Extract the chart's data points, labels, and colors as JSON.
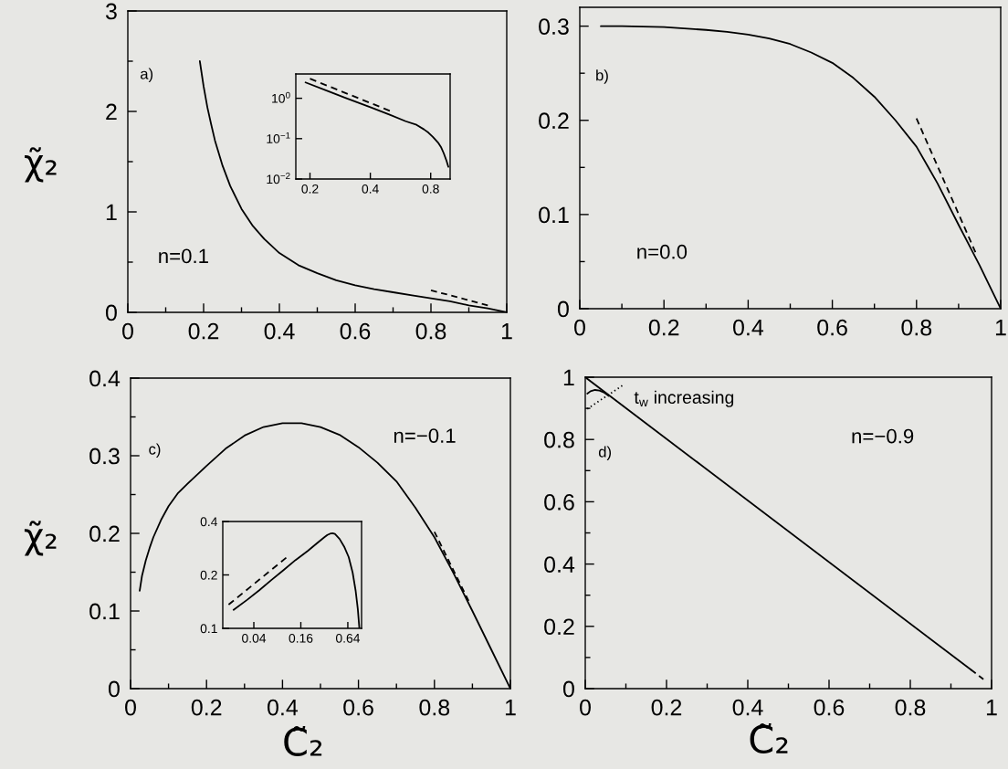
{
  "chart_data": [
    {
      "type": "line",
      "ylabel": "χ̃₂",
      "annotations": [
        "a)",
        "n=0.1"
      ],
      "series": [
        {
          "color": "#000000",
          "line_style": "solid",
          "x": [
            0.19,
            0.2,
            0.21,
            0.22,
            0.23,
            0.25,
            0.27,
            0.3,
            0.33,
            0.36,
            0.4,
            0.45,
            0.5,
            0.55,
            0.6,
            0.65,
            0.7,
            0.75,
            0.8,
            0.85,
            0.9,
            0.95,
            1.0
          ],
          "values": [
            2.5,
            2.25,
            2.04,
            1.87,
            1.71,
            1.46,
            1.26,
            1.03,
            0.86,
            0.73,
            0.59,
            0.47,
            0.39,
            0.32,
            0.27,
            0.23,
            0.2,
            0.17,
            0.14,
            0.11,
            0.07,
            0.04,
            0.0
          ]
        },
        {
          "color": "#000000",
          "line_style": "dashed",
          "x": [
            0.8,
            0.95
          ],
          "values": [
            0.22,
            0.07
          ]
        }
      ],
      "xlim": [
        0,
        1
      ],
      "ylim": [
        0,
        3
      ],
      "xticks": [
        0,
        {
          "value": 0.1,
          "label": null
        },
        0.2,
        {
          "value": 0.3,
          "label": null
        },
        0.4,
        {
          "value": 0.5,
          "label": null
        },
        0.6,
        {
          "value": 0.7,
          "label": null
        },
        0.8,
        {
          "value": 0.9,
          "label": null
        },
        1
      ],
      "yticks": [
        0,
        {
          "value": 0.5,
          "label": null
        },
        1,
        {
          "value": 1.5,
          "label": null
        },
        2,
        {
          "value": 2.5,
          "label": null
        },
        3
      ]
    },
    {
      "type": "line",
      "log": "xy",
      "series": [
        {
          "color": "#000000",
          "line_style": "solid",
          "x": [
            0.19,
            0.25,
            0.3,
            0.4,
            0.5,
            0.6,
            0.68,
            0.74,
            0.78,
            0.82,
            0.87,
            0.9,
            0.93,
            0.96,
            0.98
          ],
          "values": [
            2.47,
            1.46,
            1.03,
            0.6,
            0.39,
            0.27,
            0.22,
            0.17,
            0.14,
            0.11,
            0.08,
            0.062,
            0.043,
            0.028,
            0.02
          ]
        },
        {
          "color": "#000000",
          "line_style": "dashed",
          "x": [
            0.2,
            0.5
          ],
          "values": [
            3.05,
            0.49
          ]
        }
      ],
      "xlim": [
        0.17,
        1
      ],
      "ylim": [
        0.01,
        4
      ],
      "xticks": [
        0.2,
        0.4,
        0.8
      ],
      "yticks": [
        {
          "value": 1,
          "label": "10$^{0}$"
        },
        {
          "value": 0.1,
          "label": "10$^{−1}$"
        },
        {
          "value": 0.01,
          "label": "10$^{−2}$"
        }
      ]
    },
    {
      "type": "line",
      "annotations": [
        "b)",
        "n=0.0"
      ],
      "series": [
        {
          "color": "#000000",
          "line_style": "solid",
          "x": [
            0.05,
            0.1,
            0.2,
            0.3,
            0.35,
            0.4,
            0.45,
            0.5,
            0.55,
            0.6,
            0.65,
            0.7,
            0.75,
            0.8,
            0.85,
            0.9,
            0.95,
            1.0
          ],
          "values": [
            0.3,
            0.3,
            0.299,
            0.296,
            0.294,
            0.291,
            0.287,
            0.281,
            0.272,
            0.261,
            0.245,
            0.225,
            0.2,
            0.172,
            0.133,
            0.089,
            0.046,
            0.0
          ]
        },
        {
          "color": "#000000",
          "line_style": "dashed",
          "x": [
            0.8,
            0.94
          ],
          "values": [
            0.202,
            0.06
          ]
        }
      ],
      "xlim": [
        0,
        1
      ],
      "ylim": [
        0,
        0.32
      ],
      "xticks": [
        0,
        {
          "value": 0.1,
          "label": null
        },
        0.2,
        {
          "value": 0.3,
          "label": null
        },
        0.4,
        {
          "value": 0.5,
          "label": null
        },
        0.6,
        {
          "value": 0.7,
          "label": null
        },
        0.8,
        {
          "value": 0.9,
          "label": null
        },
        1
      ],
      "yticks": [
        0,
        {
          "value": 0.05,
          "label": null
        },
        0.1,
        {
          "value": 0.15,
          "label": null
        },
        0.2,
        {
          "value": 0.25,
          "label": null
        },
        0.3
      ]
    },
    {
      "type": "line",
      "ylabel": "χ̃₂",
      "xlabel": "C̃₂",
      "annotations": [
        "c)",
        "n=−0.1"
      ],
      "series": [
        {
          "color": "#000000",
          "line_style": "solid",
          "x": [
            0.024,
            0.03,
            0.04,
            0.05,
            0.06,
            0.08,
            0.1,
            0.125,
            0.15,
            0.2,
            0.25,
            0.3,
            0.35,
            0.4,
            0.45,
            0.5,
            0.55,
            0.6,
            0.65,
            0.7,
            0.75,
            0.8,
            0.85,
            0.9,
            0.95,
            1.0
          ],
          "values": [
            0.126,
            0.145,
            0.165,
            0.181,
            0.195,
            0.217,
            0.235,
            0.252,
            0.264,
            0.287,
            0.309,
            0.326,
            0.337,
            0.342,
            0.342,
            0.337,
            0.327,
            0.311,
            0.291,
            0.267,
            0.233,
            0.195,
            0.149,
            0.1,
            0.05,
            0.0
          ]
        },
        {
          "color": "#000000",
          "line_style": "dashed",
          "x": [
            0.8,
            0.89
          ],
          "values": [
            0.202,
            0.113
          ]
        }
      ],
      "xlim": [
        0,
        1
      ],
      "ylim": [
        0,
        0.4
      ],
      "xticks": [
        0,
        {
          "value": 0.1,
          "label": null
        },
        0.2,
        {
          "value": 0.3,
          "label": null
        },
        0.4,
        {
          "value": 0.5,
          "label": null
        },
        0.6,
        {
          "value": 0.7,
          "label": null
        },
        0.8,
        {
          "value": 0.9,
          "label": null
        },
        1
      ],
      "yticks": [
        0,
        {
          "value": 0.05,
          "label": null
        },
        0.1,
        {
          "value": 0.15,
          "label": null
        },
        0.2,
        {
          "value": 0.25,
          "label": null
        },
        0.3,
        {
          "value": 0.35,
          "label": null
        },
        0.4
      ]
    },
    {
      "type": "line",
      "log": "xy",
      "series": [
        {
          "color": "#000000",
          "line_style": "solid",
          "x": [
            0.022,
            0.033,
            0.047,
            0.067,
            0.096,
            0.136,
            0.196,
            0.256,
            0.32,
            0.35,
            0.383,
            0.41,
            0.438,
            0.502,
            0.574,
            0.657,
            0.738,
            0.806,
            0.86,
            0.9
          ],
          "values": [
            0.127,
            0.145,
            0.164,
            0.187,
            0.213,
            0.242,
            0.273,
            0.301,
            0.326,
            0.336,
            0.342,
            0.343,
            0.34,
            0.319,
            0.289,
            0.252,
            0.206,
            0.163,
            0.128,
            0.1
          ]
        },
        {
          "color": "#000000",
          "line_style": "dashed",
          "x": [
            0.019,
            0.104
          ],
          "values": [
            0.136,
            0.25
          ]
        }
      ],
      "xlim": [
        0.016,
        0.96
      ],
      "ylim": [
        0.1,
        0.4
      ],
      "xticks": [
        0.04,
        0.16,
        0.64
      ],
      "yticks": [
        0.1,
        0.2,
        0.4
      ]
    },
    {
      "type": "line",
      "xlabel": "C̃₂",
      "annotations": [
        "t$_{w}$ increasing",
        "d)",
        "n=−0.9"
      ],
      "series": [
        {
          "color": "#000000",
          "line_style": "solid",
          "x": [
            0,
            0.95
          ],
          "values": [
            1.0,
            0.06
          ]
        },
        {
          "color": "#000000",
          "line_style": "dashed",
          "x": [
            0.95,
            0.98
          ],
          "values": [
            0.06,
            0.03
          ]
        },
        {
          "color": "#000000",
          "line_style": "solid",
          "x": [
            0.005,
            0.013,
            0.024,
            0.035,
            0.047,
            0.058
          ],
          "values": [
            0.947,
            0.955,
            0.959,
            0.957,
            0.95,
            0.94
          ]
        },
        {
          "color": "#000000",
          "line_style": "dotted",
          "x": [
            0.005,
            0.091
          ],
          "values": [
            0.898,
            0.973
          ]
        }
      ],
      "xlim": [
        0,
        1
      ],
      "ylim": [
        0,
        1
      ],
      "xticks": [
        0,
        {
          "value": 0.1,
          "label": null
        },
        0.2,
        {
          "value": 0.3,
          "label": null
        },
        0.4,
        {
          "value": 0.5,
          "label": null
        },
        0.6,
        {
          "value": 0.7,
          "label": null
        },
        0.8,
        {
          "value": 0.9,
          "label": null
        },
        1
      ],
      "yticks": [
        0,
        {
          "value": 0.1,
          "label": null
        },
        0.2,
        {
          "value": 0.3,
          "label": null
        },
        0.4,
        {
          "value": 0.5,
          "label": null
        },
        0.6,
        {
          "value": 0.7,
          "label": null
        },
        0.8,
        {
          "value": 0.9,
          "label": null
        },
        1
      ]
    }
  ]
}
